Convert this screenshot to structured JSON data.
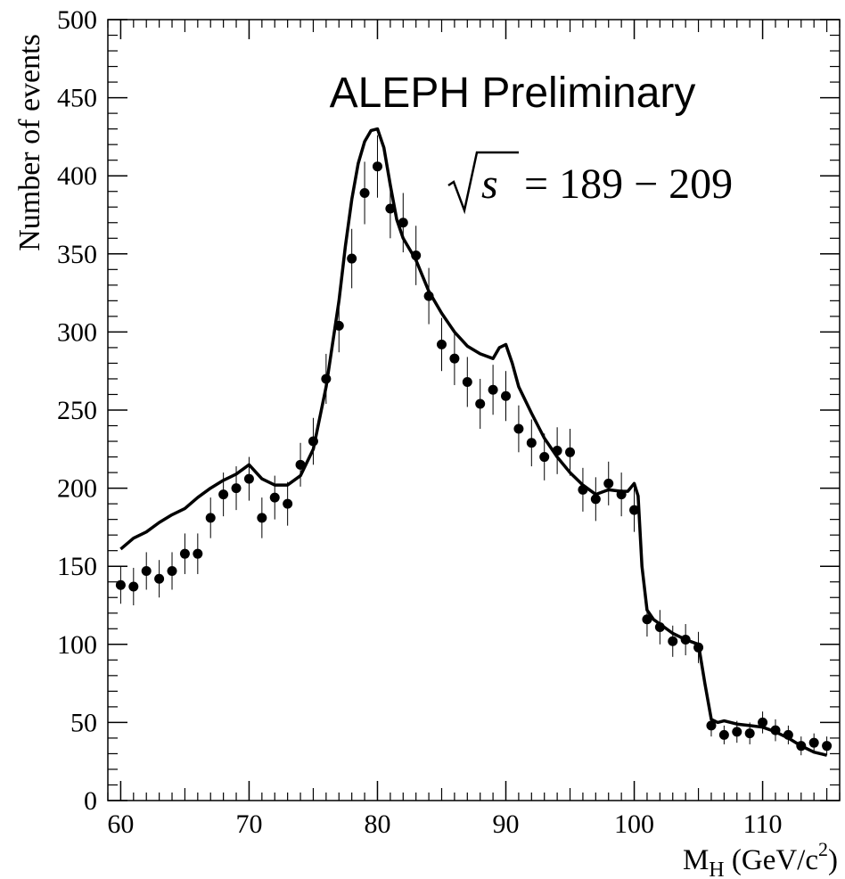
{
  "chart_data": {
    "type": "scatter",
    "title": "ALEPH Preliminary",
    "annotation": {
      "sqrt_s": "s",
      "range": "= 189 − 209"
    },
    "xlabel": {
      "main": "M",
      "sub": "H",
      "unit_pre": " (GeV/c",
      "unit_sup": "2",
      "unit_post": ")"
    },
    "ylabel": "Number of events",
    "xlim": [
      59,
      116
    ],
    "ylim": [
      0,
      500
    ],
    "x_ticks": [
      60,
      70,
      80,
      90,
      100,
      110
    ],
    "y_ticks": [
      0,
      50,
      100,
      150,
      200,
      250,
      300,
      350,
      400,
      450,
      500
    ],
    "grid": false,
    "series": [
      {
        "kind": "points-with-errorbars",
        "x": [
          60,
          61,
          62,
          63,
          64,
          65,
          66,
          67,
          68,
          69,
          70,
          71,
          72,
          73,
          74,
          75,
          76,
          77,
          78,
          79,
          80,
          81,
          82,
          83,
          84,
          85,
          86,
          87,
          88,
          89,
          90,
          91,
          92,
          93,
          94,
          95,
          96,
          97,
          98,
          99,
          100,
          101,
          102,
          103,
          104,
          105,
          106,
          107,
          108,
          109,
          110,
          111,
          112,
          113,
          114,
          115
        ],
        "y": [
          138,
          137,
          147,
          142,
          147,
          158,
          158,
          181,
          196,
          200,
          206,
          181,
          194,
          190,
          215,
          230,
          270,
          304,
          347,
          389,
          406,
          379,
          370,
          349,
          323,
          292,
          283,
          268,
          254,
          263,
          259,
          238,
          229,
          220,
          224,
          223,
          199,
          193,
          203,
          196,
          186,
          116,
          111,
          102,
          103,
          98,
          48,
          42,
          44,
          43,
          50,
          45,
          42,
          35,
          37,
          35
        ],
        "err": [
          12,
          12,
          12,
          12,
          12,
          13,
          13,
          13,
          14,
          14,
          14,
          13,
          14,
          14,
          14,
          15,
          16,
          17,
          19,
          20,
          20,
          19,
          19,
          19,
          18,
          17,
          17,
          16,
          16,
          16,
          16,
          15,
          15,
          15,
          15,
          15,
          14,
          14,
          14,
          14,
          14,
          11,
          11,
          10,
          10,
          10,
          7,
          6,
          7,
          7,
          7,
          7,
          6,
          6,
          6,
          6
        ]
      },
      {
        "kind": "line",
        "x": [
          60,
          61,
          62,
          63,
          64,
          65,
          66,
          67,
          68,
          69,
          70,
          71,
          72,
          73,
          74,
          75,
          76,
          77,
          77.5,
          78,
          78.5,
          79,
          79.5,
          80,
          80.5,
          81,
          81.5,
          82,
          83,
          84,
          85,
          86,
          87,
          88,
          89,
          89.5,
          90,
          90.5,
          91,
          92,
          93,
          94,
          95,
          96,
          97,
          98,
          99,
          99.5,
          100,
          100.3,
          100.6,
          101,
          101.5,
          102,
          103,
          104,
          105,
          105.5,
          106,
          106.5,
          107,
          108,
          109,
          110,
          111,
          112,
          113,
          114,
          115
        ],
        "y": [
          161,
          168,
          172,
          178,
          183,
          187,
          194,
          200,
          205,
          209,
          215,
          206,
          202,
          202,
          208,
          225,
          265,
          320,
          355,
          385,
          408,
          422,
          429,
          430,
          418,
          394,
          372,
          360,
          346,
          326,
          312,
          300,
          291,
          286,
          283,
          290,
          292,
          280,
          265,
          248,
          232,
          220,
          210,
          202,
          196,
          199,
          198,
          198,
          203,
          195,
          150,
          122,
          116,
          113,
          107,
          103,
          100,
          75,
          52,
          50,
          51,
          49,
          48,
          47,
          44,
          40,
          35,
          31,
          29
        ]
      }
    ]
  }
}
